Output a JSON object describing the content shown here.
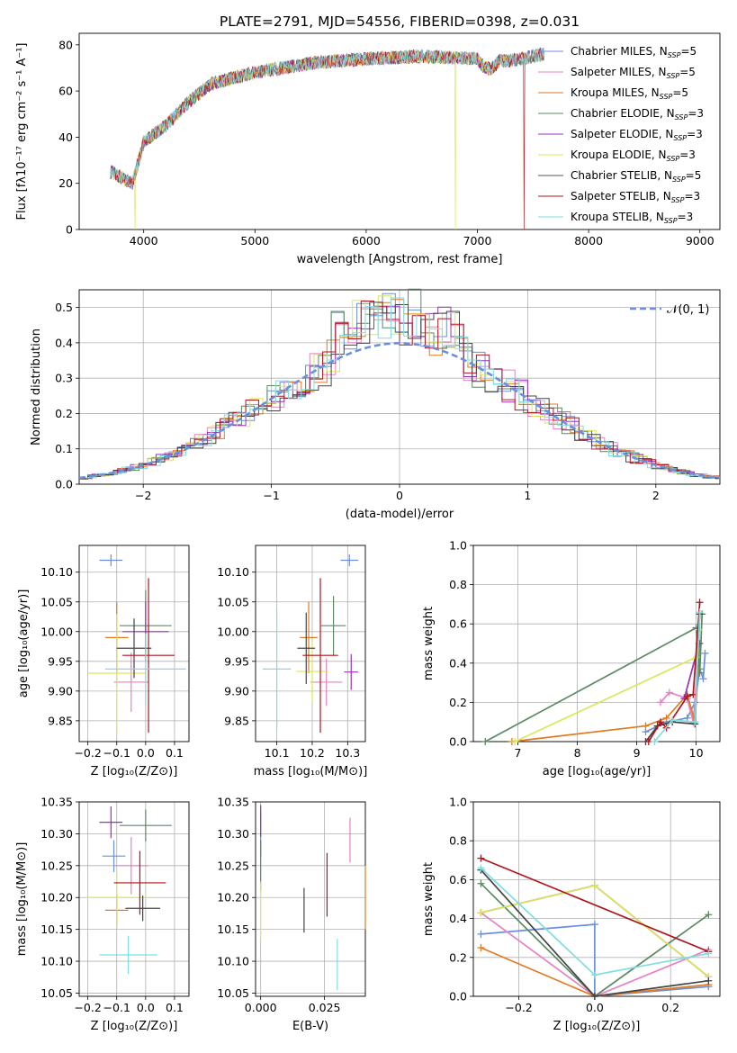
{
  "title": "PLATE=2791, MJD=54556, FIBERID=0398, z=0.031",
  "colors": [
    "#6a8fdc",
    "#e881c2",
    "#e07b20",
    "#5a8a62",
    "#9c30b8",
    "#d9e85a",
    "#555555",
    "#b0151f",
    "#7fdde0"
  ],
  "legend": {
    "models": [
      "Chabrier MILES, N",
      "Salpeter MILES, N",
      "Kroupa MILES, N",
      "Chabrier ELODIE, N",
      "Salpeter ELODIE, N",
      "Kroupa ELODIE, N",
      "Chabrier STELIB, N",
      "Salpeter STELIB, N",
      "Kroupa STELIB, N"
    ],
    "subscript": "SSP",
    "suffix": [
      "=5",
      "=5",
      "=5",
      "=3",
      "=3",
      "=3",
      "=5",
      "=3",
      "=3"
    ],
    "normal": "𝒩(0, 1)"
  },
  "axes": {
    "spectrum": {
      "xlabel": "wavelength [Angstrom, rest frame]",
      "ylabel": "Flux [fλ10⁻¹⁷ erg cm⁻² s⁻¹ A⁻¹]",
      "xlim": [
        3420,
        9180
      ],
      "ylim": [
        0,
        85
      ],
      "xticks": [
        4000,
        5000,
        6000,
        7000,
        8000,
        9000
      ],
      "yticks": [
        0,
        20,
        40,
        60,
        80
      ]
    },
    "residuals": {
      "xlabel": "(data-model)/error",
      "ylabel": "Normed distribution",
      "xlim": [
        -2.5,
        2.5
      ],
      "ylim": [
        0,
        0.55
      ],
      "xticks": [
        -2,
        -1,
        0,
        1,
        2
      ],
      "yticks": [
        0.0,
        0.1,
        0.2,
        0.3,
        0.4,
        0.5
      ]
    },
    "age_z": {
      "xlabel": "Z [log₁₀(Z/Z⊙)]",
      "ylabel": "age  [log₁₀(age/yr)]",
      "xlim": [
        -0.23,
        0.15
      ],
      "ylim": [
        9.815,
        10.145
      ],
      "xticks": [
        -0.2,
        -0.1,
        0.0,
        0.1
      ],
      "yticks": [
        9.85,
        9.9,
        9.95,
        10.0,
        10.05,
        10.1
      ]
    },
    "age_mass": {
      "xlabel": "mass [log₁₀(M/M⊙)]",
      "ylabel": "",
      "xlim": [
        10.04,
        10.35
      ],
      "ylim": [
        9.815,
        10.145
      ],
      "xticks": [
        10.1,
        10.2,
        10.3
      ],
      "yticks": [
        9.85,
        9.9,
        9.95,
        10.0,
        10.05,
        10.1
      ]
    },
    "mw_age": {
      "xlabel": "age  [log₁₀(age/yr)]",
      "ylabel": "mass weight",
      "xlim": [
        6.25,
        10.4
      ],
      "ylim": [
        0,
        1
      ],
      "xticks": [
        7,
        8,
        9,
        10
      ],
      "yticks": [
        0.0,
        0.2,
        0.4,
        0.6,
        0.8,
        1.0
      ]
    },
    "mass_z": {
      "xlabel": "Z [log₁₀(Z/Z⊙)]",
      "ylabel": "mass [log₁₀(M/M⊙)]",
      "xlim": [
        -0.23,
        0.15
      ],
      "ylim": [
        10.045,
        10.35
      ],
      "xticks": [
        -0.2,
        -0.1,
        0.0,
        0.1
      ],
      "yticks": [
        10.05,
        10.1,
        10.15,
        10.2,
        10.25,
        10.3,
        10.35
      ]
    },
    "mass_ebv": {
      "xlabel": "E(B-V)",
      "ylabel": "",
      "xlim": [
        -0.002,
        0.041
      ],
      "ylim": [
        10.045,
        10.35
      ],
      "xticks": [
        0.0,
        0.025
      ],
      "yticks": [
        10.05,
        10.1,
        10.15,
        10.2,
        10.25,
        10.3,
        10.35
      ]
    },
    "mw_z": {
      "xlabel": "Z [log₁₀(Z/Z⊙)]",
      "ylabel": "mass weight",
      "xlim": [
        -0.32,
        0.33
      ],
      "ylim": [
        0,
        1
      ],
      "xticks": [
        -0.2,
        0.0,
        0.2
      ],
      "yticks": [
        0.0,
        0.2,
        0.4,
        0.6,
        0.8,
        1.0
      ]
    }
  },
  "chart_data": [
    {
      "type": "line",
      "panel": "spectrum",
      "description": "observed spectrum overlaid with 9 SSP model fits",
      "x_range": [
        3700,
        7600
      ],
      "approx_flux_trend": [
        [
          3700,
          25
        ],
        [
          3900,
          20
        ],
        [
          4000,
          38
        ],
        [
          4200,
          45
        ],
        [
          4400,
          55
        ],
        [
          4600,
          63
        ],
        [
          5000,
          68
        ],
        [
          5500,
          72
        ],
        [
          6000,
          74
        ],
        [
          6500,
          75
        ],
        [
          7000,
          74
        ],
        [
          7300,
          73
        ],
        [
          7600,
          76
        ]
      ],
      "dropouts": [
        {
          "series": "Kroupa ELODIE",
          "x": 6800
        },
        {
          "series": "Salpeter STELIB",
          "x": 7420
        },
        {
          "series": "Kroupa ELODIE",
          "x": 3920
        }
      ]
    },
    {
      "type": "histogram",
      "panel": "residuals",
      "normal_curve": "N(0,1)",
      "series_count": 9
    },
    {
      "type": "scatter",
      "panel": "age_z",
      "points": [
        {
          "z": -0.12,
          "zerr": 0.04,
          "age": 10.12,
          "ageerr": 0.01
        },
        {
          "z": -0.05,
          "zerr": 0.06,
          "age": 9.915,
          "ageerr": 0.05
        },
        {
          "z": -0.1,
          "zerr": 0.04,
          "age": 9.99,
          "ageerr": 0.06
        },
        {
          "z": 0.0,
          "zerr": 0.09,
          "age": 10.01,
          "ageerr": 0.06
        },
        {
          "z": 0.0,
          "zerr": 0.08,
          "age": 10.0,
          "ageerr": 0.05
        },
        {
          "z": -0.1,
          "zerr": 0.1,
          "age": 9.93,
          "ageerr": 0.1
        },
        {
          "z": -0.04,
          "zerr": 0.06,
          "age": 9.972,
          "ageerr": 0.05
        },
        {
          "z": 0.01,
          "zerr": 0.09,
          "age": 9.96,
          "ageerr": 0.13
        },
        {
          "z": 0.0,
          "zerr": 0.14,
          "age": 9.937,
          "ageerr": 0.06
        }
      ]
    },
    {
      "type": "scatter",
      "panel": "age_mass",
      "points": [
        {
          "mass": 10.305,
          "masserr": 0.025,
          "age": 10.12,
          "ageerr": 0.01
        },
        {
          "mass": 10.24,
          "masserr": 0.045,
          "age": 9.915,
          "ageerr": 0.04
        },
        {
          "mass": 10.19,
          "masserr": 0.025,
          "age": 9.99,
          "ageerr": 0.06
        },
        {
          "mass": 10.26,
          "masserr": 0.035,
          "age": 10.01,
          "ageerr": 0.05
        },
        {
          "mass": 10.31,
          "masserr": 0.02,
          "age": 9.932,
          "ageerr": 0.03
        },
        {
          "mass": 10.2,
          "masserr": 0.045,
          "age": 9.933,
          "ageerr": 0.05
        },
        {
          "mass": 10.183,
          "masserr": 0.025,
          "age": 9.972,
          "ageerr": 0.06
        },
        {
          "mass": 10.223,
          "masserr": 0.05,
          "age": 9.96,
          "ageerr": 0.13
        },
        {
          "mass": 10.1,
          "masserr": 0.04,
          "age": 9.937,
          "ageerr": 0.1
        }
      ]
    },
    {
      "type": "line",
      "panel": "mw_age",
      "series": [
        {
          "age": [
            9.15,
            9.5,
            9.85,
            9.98,
            10.06,
            10.12,
            10.15
          ],
          "weight": [
            0.05,
            0.1,
            0.12,
            0.2,
            0.37,
            0.32,
            0.45
          ]
        },
        {
          "age": [
            9.4,
            9.55,
            9.85,
            9.95,
            10.05
          ],
          "weight": [
            0.2,
            0.25,
            0.22,
            0.1,
            0.5
          ]
        },
        {
          "age": [
            6.9,
            9.15,
            9.5,
            9.85,
            9.98,
            10.06
          ],
          "weight": [
            0.0,
            0.08,
            0.12,
            0.24,
            0.1,
            0.5
          ]
        },
        {
          "age": [
            6.45,
            10.0,
            10.06,
            10.1
          ],
          "weight": [
            0.0,
            0.58,
            0.35,
            0.65
          ]
        },
        {
          "age": [
            9.8,
            10.05
          ],
          "weight": [
            0.22,
            0.5
          ]
        },
        {
          "age": [
            6.95,
            10.0,
            10.05
          ],
          "weight": [
            0.0,
            0.43,
            0.57
          ]
        },
        {
          "age": [
            9.15,
            9.35,
            9.6,
            9.98,
            10.06
          ],
          "weight": [
            0.0,
            0.08,
            0.1,
            0.09,
            0.65
          ]
        },
        {
          "age": [
            9.2,
            9.4,
            9.5,
            9.85,
            9.95,
            10.06
          ],
          "weight": [
            0.0,
            0.1,
            0.07,
            0.23,
            0.24,
            0.71
          ]
        },
        {
          "age": [
            9.3,
            9.6,
            9.98,
            10.06
          ],
          "weight": [
            0.0,
            0.11,
            0.1,
            0.66
          ]
        }
      ]
    },
    {
      "type": "scatter",
      "panel": "mass_z",
      "points": [
        {
          "z": -0.11,
          "zerr": 0.04,
          "mass": 10.265,
          "masserr": 0.025
        },
        {
          "z": -0.05,
          "zerr": 0.06,
          "mass": 10.25,
          "masserr": 0.045
        },
        {
          "z": -0.1,
          "zerr": 0.04,
          "mass": 10.18,
          "masserr": 0.025
        },
        {
          "z": 0.0,
          "zerr": 0.09,
          "mass": 10.313,
          "masserr": 0.025
        },
        {
          "z": -0.12,
          "zerr": 0.04,
          "mass": 10.318,
          "masserr": 0.025
        },
        {
          "z": -0.1,
          "zerr": 0.11,
          "mass": 10.2,
          "masserr": 0.045
        },
        {
          "z": -0.01,
          "zerr": 0.06,
          "mass": 10.183,
          "masserr": 0.02
        },
        {
          "z": -0.02,
          "zerr": 0.09,
          "mass": 10.223,
          "masserr": 0.05
        },
        {
          "z": -0.06,
          "zerr": 0.1,
          "mass": 10.11,
          "masserr": 0.03
        }
      ]
    },
    {
      "type": "scatter",
      "panel": "mass_ebv",
      "points": [
        {
          "ebv": 0.0,
          "mass": 10.3,
          "masserr": 0.035
        },
        {
          "ebv": 0.035,
          "mass": 10.29,
          "masserr": 0.035
        },
        {
          "ebv": 0.041,
          "mass": 10.2,
          "masserr": 0.05
        },
        {
          "ebv": 0.0,
          "mass": 10.25,
          "masserr": 0.04
        },
        {
          "ebv": 0.0,
          "mass": 10.32,
          "masserr": 0.025
        },
        {
          "ebv": 0.0,
          "mass": 10.18,
          "masserr": 0.045
        },
        {
          "ebv": 0.017,
          "mass": 10.18,
          "masserr": 0.035
        },
        {
          "ebv": 0.026,
          "mass": 10.22,
          "masserr": 0.05
        },
        {
          "ebv": 0.03,
          "mass": 10.095,
          "masserr": 0.04
        }
      ]
    },
    {
      "type": "line",
      "panel": "mw_z",
      "series": [
        {
          "z": [
            -0.3,
            0.0,
            0.0,
            0.3
          ],
          "weight": [
            0.32,
            0.37,
            0.0,
            0.05
          ]
        },
        {
          "z": [
            -0.3,
            0.0,
            0.3
          ],
          "weight": [
            0.43,
            0.0,
            0.24
          ]
        },
        {
          "z": [
            -0.3,
            0.0,
            0.3
          ],
          "weight": [
            0.25,
            0.0,
            0.06
          ]
        },
        {
          "z": [
            -0.3,
            0.0,
            0.3
          ],
          "weight": [
            0.58,
            0.0,
            0.42
          ]
        },
        {
          "z": [
            -0.3,
            0.0,
            0.3
          ],
          "weight": [
            0.43,
            0.57,
            0.1
          ]
        },
        {
          "z": [
            -0.3,
            0.0,
            0.3
          ],
          "weight": [
            0.43,
            0.57,
            0.1
          ]
        },
        {
          "z": [
            -0.3,
            0.0,
            0.3
          ],
          "weight": [
            0.65,
            0.0,
            0.08
          ]
        },
        {
          "z": [
            -0.3,
            0.3
          ],
          "weight": [
            0.71,
            0.23
          ]
        },
        {
          "z": [
            -0.3,
            0.0,
            0.3
          ],
          "weight": [
            0.66,
            0.11,
            0.22
          ]
        }
      ]
    }
  ]
}
